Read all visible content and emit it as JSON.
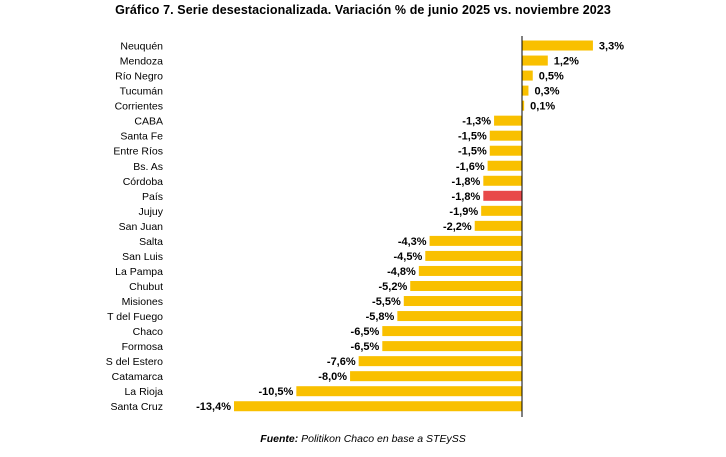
{
  "chart_data": {
    "type": "bar",
    "orientation": "horizontal",
    "title": "Gráfico 7. Serie desestacionalizada. Variación % de junio 2025 vs. noviembre 2023",
    "categories": [
      "Neuquén",
      "Mendoza",
      "Río Negro",
      "Tucumán",
      "Corrientes",
      "CABA",
      "Santa Fe",
      "Entre Ríos",
      "Bs. As",
      "Córdoba",
      "País",
      "Jujuy",
      "San Juan",
      "Salta",
      "San Luis",
      "La Pampa",
      "Chubut",
      "Misiones",
      "T del Fuego",
      "Chaco",
      "Formosa",
      "S del Estero",
      "Catamarca",
      "La Rioja",
      "Santa Cruz"
    ],
    "values": [
      3.3,
      1.2,
      0.5,
      0.3,
      0.1,
      -1.3,
      -1.5,
      -1.5,
      -1.6,
      -1.8,
      -1.8,
      -1.9,
      -2.2,
      -4.3,
      -4.5,
      -4.8,
      -5.2,
      -5.5,
      -5.8,
      -6.5,
      -6.5,
      -7.6,
      -8.0,
      -10.5,
      -13.4
    ],
    "value_labels": [
      "3,3%",
      "1,2%",
      "0,5%",
      "0,3%",
      "0,1%",
      "-1,3%",
      "-1,5%",
      "-1,5%",
      "-1,6%",
      "-1,8%",
      "-1,8%",
      "-1,9%",
      "-2,2%",
      "-4,3%",
      "-4,5%",
      "-4,8%",
      "-5,2%",
      "-5,5%",
      "-5,8%",
      "-6,5%",
      "-6,5%",
      "-7,6%",
      "-8,0%",
      "-10,5%",
      "-13,4%"
    ],
    "highlight_category": "País",
    "colors": {
      "bar": "#F9C000",
      "highlight": "#E84A4A",
      "axis": "#000000"
    },
    "xlim": [
      -13.4,
      3.3
    ]
  },
  "source": {
    "label": "Fuente:",
    "text": " Politikon Chaco en base a STEySS"
  }
}
